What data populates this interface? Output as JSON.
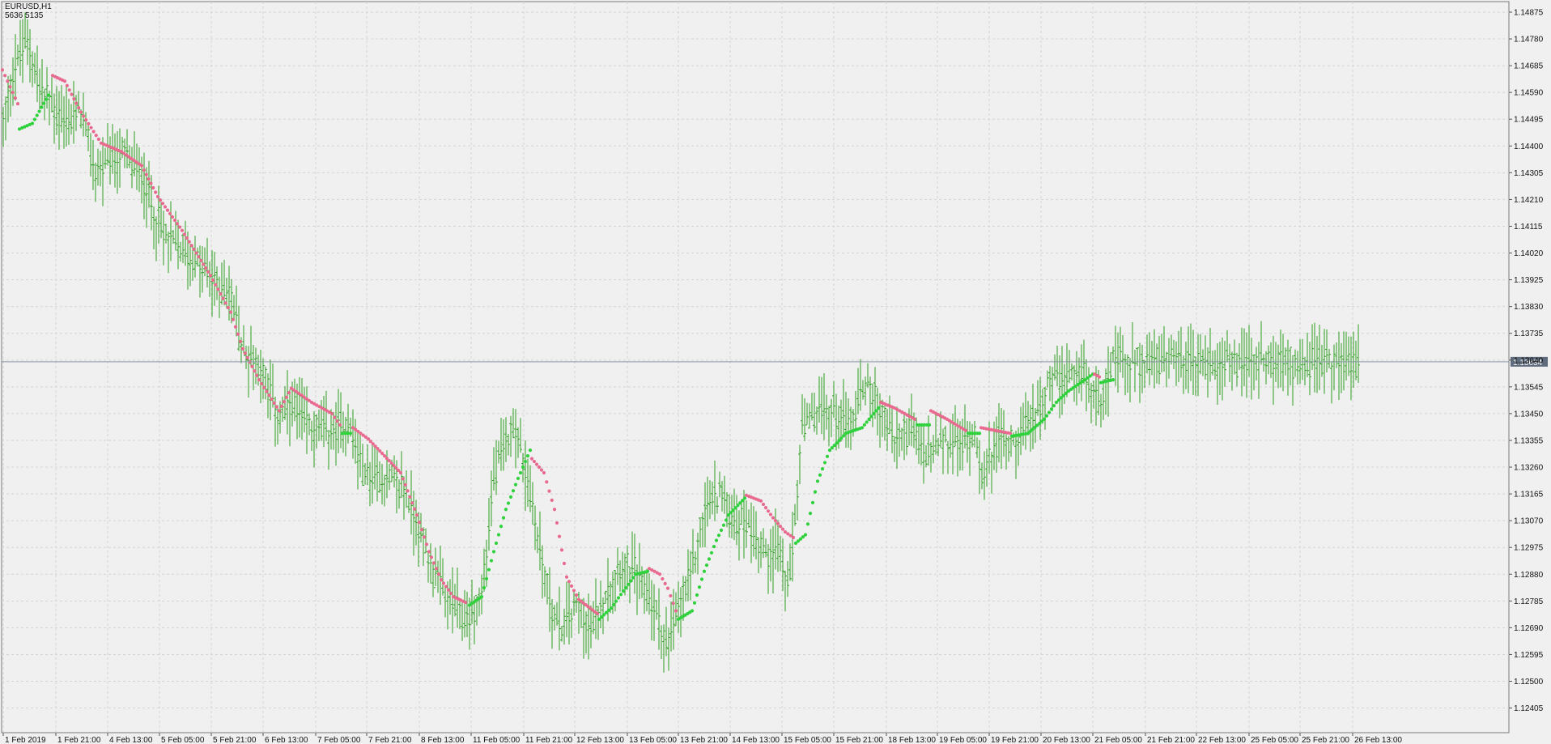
{
  "header": {
    "symbol": "EURUSD,H1",
    "values": "5636   5135"
  },
  "colors": {
    "background": "#f0f0f0",
    "grid": "#d4d4d4",
    "candle": "#2e9e22",
    "dots_up": "#2fd23c",
    "dots_down": "#e86a8f",
    "price_line": "#8a96a6",
    "price_label_bg": "#5d6b7c"
  },
  "chart_data": {
    "type": "line",
    "title": "",
    "ylim": [
      1.1231,
      1.1497
    ],
    "current_price": "1.13634",
    "y_ticks": [
      "1.14875",
      "1.14780",
      "1.14685",
      "1.14590",
      "1.14495",
      "1.14400",
      "1.14305",
      "1.14210",
      "1.14115",
      "1.14020",
      "1.13925",
      "1.13830",
      "1.13735",
      "1.13640",
      "1.13545",
      "1.13450",
      "1.13355",
      "1.13260",
      "1.13165",
      "1.13070",
      "1.12975",
      "1.12880",
      "1.12785",
      "1.12690",
      "1.12595",
      "1.12500",
      "1.12405"
    ],
    "x_labels": [
      "1 Feb 2019",
      "1 Feb 21:00",
      "4 Feb 13:00",
      "5 Feb 05:00",
      "5 Feb 21:00",
      "6 Feb 13:00",
      "7 Feb 05:00",
      "7 Feb 21:00",
      "8 Feb 13:00",
      "11 Feb 05:00",
      "11 Feb 21:00",
      "12 Feb 13:00",
      "13 Feb 05:00",
      "13 Feb 21:00",
      "14 Feb 13:00",
      "15 Feb 05:00",
      "15 Feb 21:00",
      "18 Feb 13:00",
      "19 Feb 05:00",
      "19 Feb 21:00",
      "20 Feb 13:00",
      "21 Feb 05:00",
      "21 Feb 21:00",
      "22 Feb 13:00",
      "25 Feb 05:00",
      "25 Feb 21:00",
      "26 Feb 13:00"
    ],
    "price_anchors": [
      [
        0,
        1.1441
      ],
      [
        15,
        1.1466
      ],
      [
        35,
        1.1478
      ],
      [
        50,
        1.1459
      ],
      [
        60,
        1.1456
      ],
      [
        80,
        1.1448
      ],
      [
        100,
        1.1452
      ],
      [
        115,
        1.1432
      ],
      [
        130,
        1.1432
      ],
      [
        150,
        1.1437
      ],
      [
        175,
        1.143
      ],
      [
        200,
        1.1409
      ],
      [
        225,
        1.1404
      ],
      [
        260,
        1.1393
      ],
      [
        285,
        1.1387
      ],
      [
        300,
        1.1367
      ],
      [
        320,
        1.1363
      ],
      [
        345,
        1.1343
      ],
      [
        360,
        1.1347
      ],
      [
        385,
        1.134
      ],
      [
        410,
        1.1338
      ],
      [
        430,
        1.1343
      ],
      [
        450,
        1.1323
      ],
      [
        475,
        1.1323
      ],
      [
        500,
        1.1318
      ],
      [
        520,
        1.1302
      ],
      [
        545,
        1.1282
      ],
      [
        560,
        1.1277
      ],
      [
        575,
        1.1271
      ],
      [
        595,
        1.128
      ],
      [
        610,
        1.1322
      ],
      [
        635,
        1.1343
      ],
      [
        655,
        1.1316
      ],
      [
        675,
        1.1284
      ],
      [
        690,
        1.1268
      ],
      [
        715,
        1.1278
      ],
      [
        730,
        1.1267
      ],
      [
        745,
        1.128
      ],
      [
        765,
        1.1292
      ],
      [
        780,
        1.129
      ],
      [
        800,
        1.1282
      ],
      [
        815,
        1.1271
      ],
      [
        825,
        1.1262
      ],
      [
        840,
        1.1277
      ],
      [
        855,
        1.129
      ],
      [
        870,
        1.131
      ],
      [
        890,
        1.1318
      ],
      [
        905,
        1.1307
      ],
      [
        925,
        1.1306
      ],
      [
        945,
        1.1295
      ],
      [
        960,
        1.1298
      ],
      [
        975,
        1.1282
      ],
      [
        990,
        1.1338
      ],
      [
        1010,
        1.1345
      ],
      [
        1030,
        1.1346
      ],
      [
        1050,
        1.1342
      ],
      [
        1070,
        1.1357
      ],
      [
        1085,
        1.1348
      ],
      [
        1105,
        1.1335
      ],
      [
        1125,
        1.134
      ],
      [
        1145,
        1.1329
      ],
      [
        1165,
        1.1335
      ],
      [
        1185,
        1.1333
      ],
      [
        1205,
        1.1338
      ],
      [
        1215,
        1.1322
      ],
      [
        1230,
        1.1335
      ],
      [
        1245,
        1.1336
      ],
      [
        1260,
        1.1336
      ],
      [
        1280,
        1.1346
      ],
      [
        1300,
        1.1358
      ],
      [
        1320,
        1.1356
      ],
      [
        1340,
        1.136
      ],
      [
        1355,
        1.1349
      ],
      [
        1375,
        1.1363
      ]
    ],
    "dot_series": [
      {
        "color": "down",
        "points": [
          [
            3,
            1.1467
          ],
          [
            22,
            1.1455
          ]
        ]
      },
      {
        "color": "up",
        "points": [
          [
            24,
            1.1446
          ],
          [
            40,
            1.1448
          ],
          [
            60,
            1.1458
          ]
        ]
      },
      {
        "color": "down",
        "points": [
          [
            65,
            1.1465
          ],
          [
            80,
            1.1463
          ],
          [
            100,
            1.1452
          ],
          [
            125,
            1.1441
          ],
          [
            150,
            1.1438
          ],
          [
            175,
            1.1433
          ],
          [
            195,
            1.1422
          ],
          [
            225,
            1.141
          ],
          [
            260,
            1.1394
          ],
          [
            285,
            1.1381
          ],
          [
            300,
            1.1368
          ],
          [
            320,
            1.1357
          ],
          [
            345,
            1.1346
          ],
          [
            360,
            1.1354
          ],
          [
            385,
            1.1349
          ],
          [
            410,
            1.1345
          ],
          [
            420,
            1.1341
          ]
        ]
      },
      {
        "color": "up",
        "points": [
          [
            423,
            1.1338
          ],
          [
            433,
            1.1338
          ]
        ]
      },
      {
        "color": "down",
        "points": [
          [
            436,
            1.134
          ],
          [
            455,
            1.1336
          ],
          [
            475,
            1.133
          ],
          [
            495,
            1.1324
          ],
          [
            515,
            1.1309
          ],
          [
            530,
            1.1296
          ],
          [
            545,
            1.1286
          ],
          [
            560,
            1.128
          ],
          [
            575,
            1.1278
          ]
        ]
      },
      {
        "color": "up",
        "points": [
          [
            580,
            1.1277
          ],
          [
            595,
            1.128
          ],
          [
            610,
            1.1296
          ],
          [
            625,
            1.1311
          ],
          [
            640,
            1.1322
          ],
          [
            655,
            1.1332
          ]
        ]
      },
      {
        "color": "down",
        "points": [
          [
            657,
            1.1329
          ],
          [
            672,
            1.1324
          ],
          [
            685,
            1.1311
          ],
          [
            700,
            1.1287
          ],
          [
            715,
            1.1279
          ],
          [
            738,
            1.1274
          ]
        ]
      },
      {
        "color": "up",
        "points": [
          [
            740,
            1.1272
          ],
          [
            755,
            1.1276
          ],
          [
            770,
            1.1282
          ],
          [
            785,
            1.1288
          ],
          [
            800,
            1.1289
          ]
        ]
      },
      {
        "color": "down",
        "points": [
          [
            802,
            1.129
          ],
          [
            815,
            1.1288
          ],
          [
            825,
            1.1283
          ],
          [
            835,
            1.1275
          ]
        ]
      },
      {
        "color": "up",
        "points": [
          [
            838,
            1.1272
          ],
          [
            855,
            1.1275
          ],
          [
            870,
            1.1289
          ],
          [
            885,
            1.13
          ],
          [
            900,
            1.1309
          ],
          [
            920,
            1.1315
          ]
        ]
      },
      {
        "color": "down",
        "points": [
          [
            922,
            1.1316
          ],
          [
            940,
            1.1314
          ],
          [
            955,
            1.1308
          ],
          [
            970,
            1.1303
          ],
          [
            980,
            1.1301
          ]
        ]
      },
      {
        "color": "up",
        "points": [
          [
            983,
            1.1299
          ],
          [
            995,
            1.1302
          ],
          [
            1010,
            1.1321
          ],
          [
            1025,
            1.1332
          ],
          [
            1045,
            1.1338
          ],
          [
            1065,
            1.134
          ],
          [
            1085,
            1.1347
          ]
        ]
      },
      {
        "color": "down",
        "points": [
          [
            1088,
            1.1349
          ],
          [
            1105,
            1.1347
          ],
          [
            1130,
            1.1343
          ]
        ]
      },
      {
        "color": "up",
        "points": [
          [
            1133,
            1.1341
          ],
          [
            1148,
            1.1341
          ]
        ]
      },
      {
        "color": "down",
        "points": [
          [
            1150,
            1.1346
          ],
          [
            1170,
            1.1343
          ],
          [
            1193,
            1.1339
          ]
        ]
      },
      {
        "color": "up",
        "points": [
          [
            1196,
            1.1338
          ],
          [
            1210,
            1.1338
          ]
        ]
      },
      {
        "color": "down",
        "points": [
          [
            1212,
            1.134
          ],
          [
            1230,
            1.1339
          ],
          [
            1248,
            1.1338
          ]
        ]
      },
      {
        "color": "up",
        "points": [
          [
            1250,
            1.1337
          ],
          [
            1270,
            1.1338
          ],
          [
            1290,
            1.1343
          ],
          [
            1305,
            1.1349
          ],
          [
            1320,
            1.1353
          ],
          [
            1340,
            1.1357
          ],
          [
            1350,
            1.1359
          ]
        ]
      },
      {
        "color": "down",
        "points": [
          [
            1352,
            1.1359
          ],
          [
            1358,
            1.1358
          ]
        ]
      },
      {
        "color": "up",
        "points": [
          [
            1360,
            1.1356
          ],
          [
            1375,
            1.1357
          ]
        ]
      }
    ]
  }
}
